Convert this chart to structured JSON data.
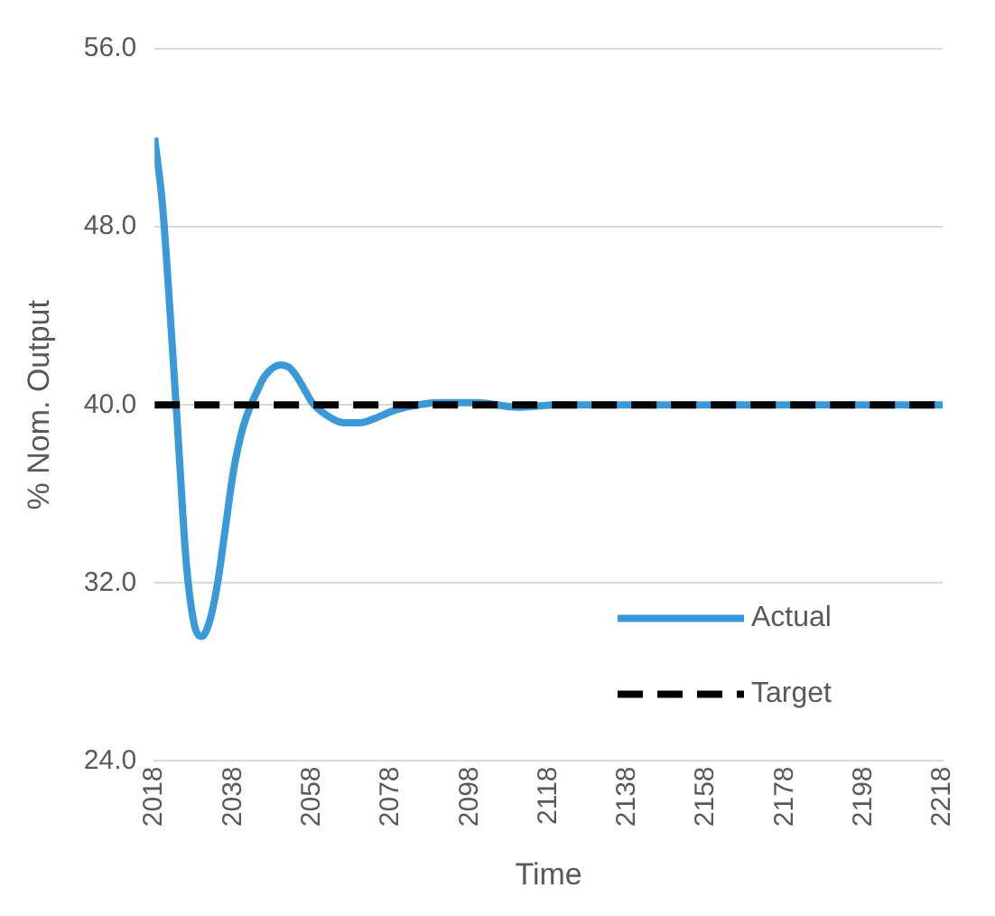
{
  "chart_data": {
    "type": "line",
    "xlabel": "Time",
    "ylabel": "% Nom. Output",
    "xlim": [
      2018,
      2218
    ],
    "xticks": [
      2018,
      2038,
      2058,
      2078,
      2098,
      2118,
      2138,
      2158,
      2178,
      2198,
      2218
    ],
    "ylim": [
      24,
      56
    ],
    "yticks": [
      {
        "value": 24,
        "label": "24.0"
      },
      {
        "value": 32,
        "label": "32.0"
      },
      {
        "value": 40,
        "label": "40.0"
      },
      {
        "value": 48,
        "label": "48.0"
      },
      {
        "value": 56,
        "label": "56.0"
      }
    ],
    "grid": "y",
    "legend": "bottom right",
    "marker": "none",
    "series": [
      {
        "name": "Actual",
        "color": "#3a9ad9",
        "line_style": "solid",
        "x": [
          2018,
          2020,
          2022,
          2024,
          2026,
          2028,
          2030,
          2032,
          2034,
          2036,
          2038,
          2040,
          2042,
          2044,
          2046,
          2050,
          2052,
          2054,
          2056,
          2058,
          2062,
          2066,
          2070,
          2074,
          2078,
          2082,
          2090,
          2100,
          2110,
          2120,
          2218
        ],
        "values": [
          52,
          49,
          44,
          38.5,
          33,
          30.2,
          29.6,
          30.3,
          32,
          34.5,
          37,
          38.7,
          39.8,
          40.6,
          41.3,
          41.8,
          41.7,
          41.3,
          40.7,
          40.1,
          39.5,
          39.2,
          39.2,
          39.4,
          39.7,
          39.9,
          40.1,
          40.1,
          39.9,
          40,
          40
        ]
      },
      {
        "name": "Target",
        "color": "#000000",
        "line_style": "dashed",
        "x": [
          2018,
          2218
        ],
        "values": [
          40,
          40
        ]
      }
    ]
  }
}
